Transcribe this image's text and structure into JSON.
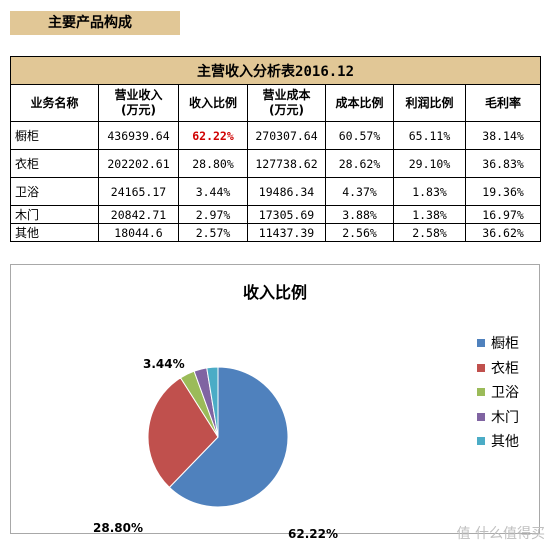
{
  "section_header": "主要产品构成",
  "table": {
    "title": "主营收入分析表2016.12",
    "headers": [
      "业务名称",
      "营业收入\n(万元)",
      "收入比例",
      "营业成本\n(万元)",
      "成本比例",
      "利润比例",
      "毛利率"
    ],
    "rows": [
      [
        "橱柜",
        "436939.64",
        "62.22%",
        "270307.64",
        "60.57%",
        "65.11%",
        "38.14%"
      ],
      [
        "衣柜",
        "202202.61",
        "28.80%",
        "127738.62",
        "28.62%",
        "29.10%",
        "36.83%"
      ],
      [
        "卫浴",
        "24165.17",
        "3.44%",
        "19486.34",
        "4.37%",
        "1.83%",
        "19.36%"
      ],
      [
        "木门",
        "20842.71",
        "2.97%",
        "17305.69",
        "3.88%",
        "1.38%",
        "16.97%"
      ],
      [
        "其他",
        "18044.6",
        "2.57%",
        "11437.39",
        "2.56%",
        "2.58%",
        "36.62%"
      ]
    ]
  },
  "chart_data": {
    "type": "pie",
    "title": "收入比例",
    "categories": [
      "橱柜",
      "衣柜",
      "卫浴",
      "木门",
      "其他"
    ],
    "values": [
      62.22,
      28.8,
      3.44,
      2.97,
      2.57
    ],
    "data_labels": [
      "62.22%",
      "28.80%",
      "3.44%",
      "",
      ""
    ],
    "colors": [
      "#4f81bd",
      "#c0504d",
      "#9bbb59",
      "#8064a2",
      "#4bacc6"
    ],
    "legend": "right"
  },
  "watermark": "值 什么值得买"
}
